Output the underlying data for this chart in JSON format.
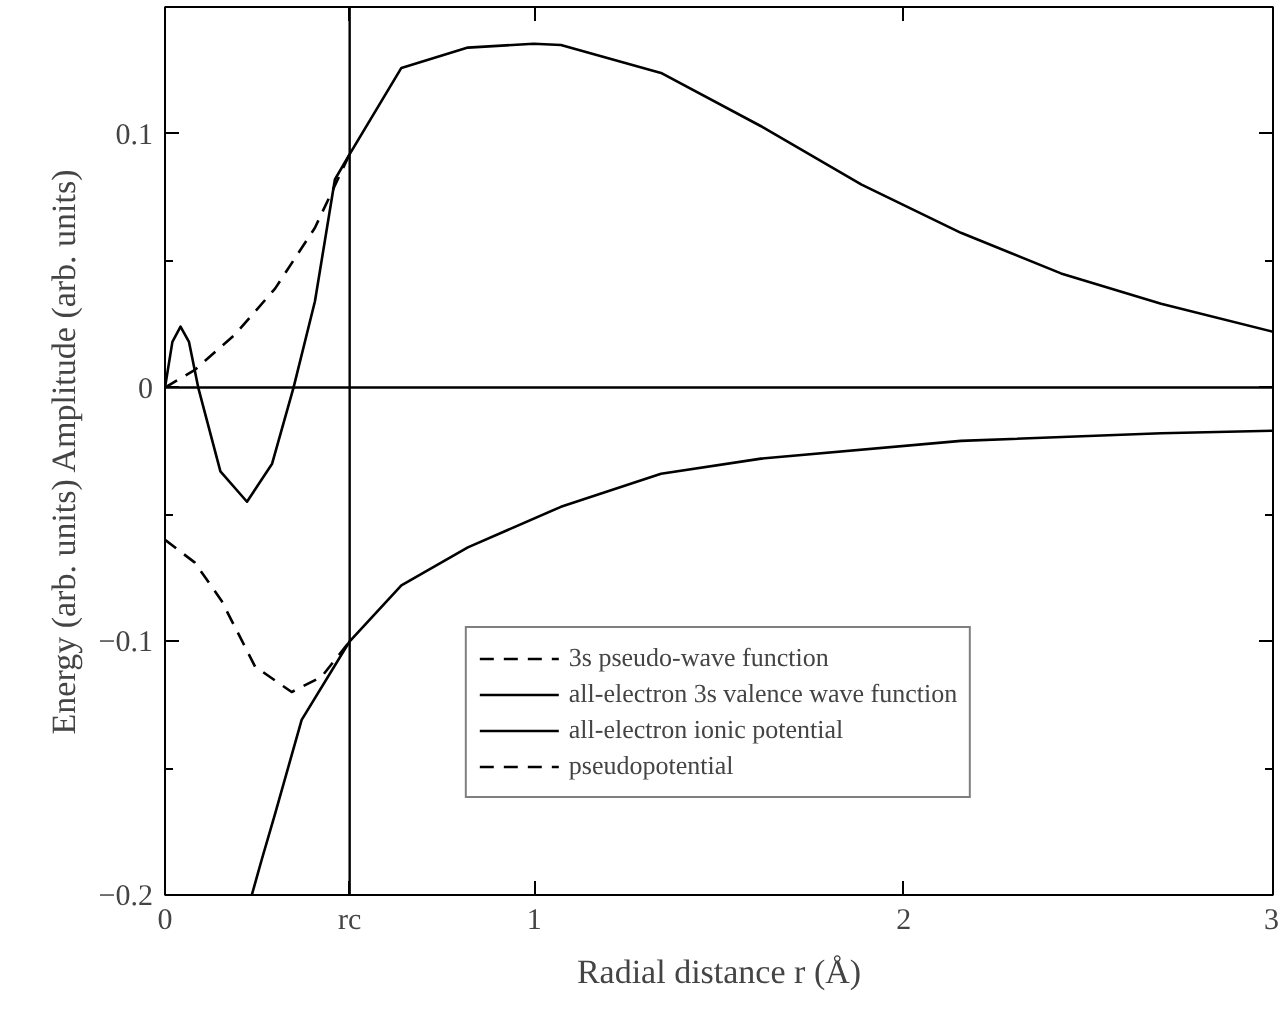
{
  "chart_data": {
    "type": "line",
    "xlabel": "Radial distance r (Å)",
    "ylabel": "Energy (arb. units) Amplitude (arb. units)",
    "xlim": [
      0,
      3
    ],
    "ylim": [
      -0.2,
      0.15
    ],
    "xticks": [
      0,
      {
        "value": 0.5,
        "label": "rc"
      },
      1,
      2,
      3
    ],
    "yticks": [
      {
        "value": -0.2,
        "label": "−0.2"
      },
      {
        "value": -0.15,
        "label": null
      },
      {
        "value": -0.1,
        "label": "−0.1"
      },
      {
        "value": -0.05,
        "label": null
      },
      0,
      {
        "value": 0.05,
        "label": null
      },
      0.1
    ],
    "grid": false,
    "legend": "bottom",
    "marker": "none",
    "ref_lines": [
      {
        "axis": "x",
        "value": 0.5
      },
      {
        "axis": "y",
        "value": 0
      }
    ],
    "series": [
      {
        "name": "3s pseudo-wave function",
        "color": "#000000",
        "line_style": "dashed",
        "x": [
          0,
          0.081,
          0.19,
          0.298,
          0.406,
          0.5
        ],
        "values": [
          0,
          0.007,
          0.021,
          0.039,
          0.063,
          0.092
        ]
      },
      {
        "name": "all-electron 3s valence wave function",
        "color": "#000000",
        "line_style": "solid",
        "x": [
          0,
          0.02,
          0.042,
          0.065,
          0.09,
          0.15,
          0.222,
          0.29,
          0.348,
          0.406,
          0.433,
          0.46,
          0.5,
          0.64,
          0.82,
          0.998,
          1.072,
          1.343,
          1.614,
          1.886,
          2.155,
          2.426,
          2.697,
          3.0
        ],
        "values": [
          0,
          0.018,
          0.024,
          0.018,
          0,
          -0.033,
          -0.045,
          -0.03,
          0,
          0.034,
          0.058,
          0.082,
          0.092,
          0.126,
          0.134,
          0.1355,
          0.135,
          0.124,
          0.103,
          0.08,
          0.061,
          0.045,
          0.033,
          0.022
        ]
      },
      {
        "name": "all-electron ionic potential",
        "color": "#000000",
        "line_style": "solid",
        "x": [
          0.235,
          0.262,
          0.298,
          0.37,
          0.5,
          0.64,
          0.82,
          1.072,
          1.343,
          1.614,
          2.155,
          2.697,
          3.0
        ],
        "values": [
          -0.2,
          -0.186,
          -0.168,
          -0.131,
          -0.1,
          -0.078,
          -0.063,
          -0.047,
          -0.034,
          -0.028,
          -0.021,
          -0.018,
          -0.017
        ]
      },
      {
        "name": "pseudopotential",
        "color": "#000000",
        "line_style": "dashed",
        "x": [
          0,
          0.081,
          0.153,
          0.244,
          0.343,
          0.424,
          0.5
        ],
        "values": [
          -0.06,
          -0.069,
          -0.084,
          -0.11,
          -0.12,
          -0.114,
          -0.1
        ]
      }
    ]
  }
}
